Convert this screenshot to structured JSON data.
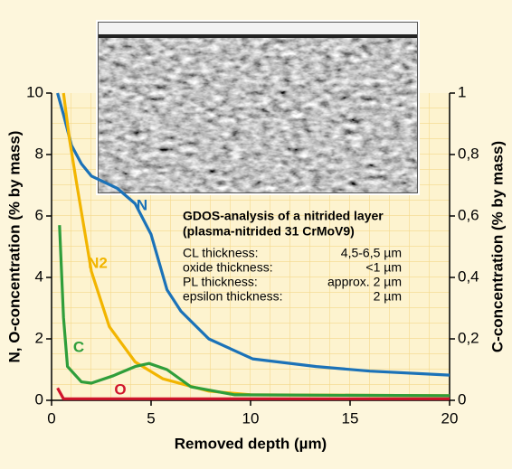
{
  "chart_data": {
    "type": "line",
    "x_label": "Removed depth (µm)",
    "y_label": "N, O-concentration (% by mass)",
    "y2_label": "C-concentration (% by mass)",
    "xlim": [
      0,
      20
    ],
    "xticks": [
      0,
      5,
      10,
      15,
      20
    ],
    "ylim": [
      0,
      10
    ],
    "yticks": [
      0,
      2,
      4,
      6,
      8,
      10
    ],
    "y2lim": [
      0,
      1
    ],
    "y2ticks": [
      0,
      {
        "value": 0.2,
        "label": "0,2"
      },
      {
        "value": 0.4,
        "label": "0,4"
      },
      {
        "value": 0.6,
        "label": "0,6"
      },
      {
        "value": 0.8,
        "label": "0,8"
      },
      1
    ],
    "series": [
      {
        "name": "N",
        "color": "#1b72b8",
        "x": [
          0.3,
          0.6,
          1,
          1.5,
          2,
          3.3,
          4.2,
          5,
          5.8,
          6.5,
          7.9,
          10.1,
          13.3,
          16,
          20
        ],
        "values": [
          10,
          9.3,
          8.3,
          7.7,
          7.3,
          6.9,
          6.4,
          5.4,
          3.6,
          2.9,
          2.0,
          1.35,
          1.1,
          0.95,
          0.82
        ]
      },
      {
        "name": "N2",
        "color": "#f2b500",
        "x": [
          0.6,
          0.9,
          1.3,
          2,
          2.9,
          4.2,
          5.6,
          7.9,
          10,
          20
        ],
        "values": [
          10,
          8.5,
          6.9,
          4.2,
          2.4,
          1.25,
          0.7,
          0.3,
          0.18,
          0.15
        ]
      },
      {
        "name": "C",
        "color": "#2f9e3b",
        "axis": "y2",
        "x": [
          0.4,
          0.6,
          0.8,
          1.5,
          2,
          3.1,
          4.2,
          4.9,
          5.8,
          7,
          9.2,
          20
        ],
        "values": [
          0.57,
          0.27,
          0.11,
          0.06,
          0.056,
          0.08,
          0.11,
          0.12,
          0.1,
          0.044,
          0.018,
          0.015
        ]
      },
      {
        "name": "O",
        "color": "#d0142c",
        "x": [
          0.3,
          0.6,
          1,
          20
        ],
        "values": [
          0.4,
          0.05,
          0.05,
          0.05
        ]
      }
    ],
    "annotation": {
      "title": "GDOS-analysis of a nitrided layer",
      "subtitle": "(plasma-nitrided 31 CrMoV9)",
      "rows": [
        [
          "CL thickness:",
          "4,5-6,5 µm"
        ],
        [
          "oxide thickness:",
          "<1 µm"
        ],
        [
          "PL thickness:",
          "approx. 2 µm"
        ],
        [
          "epsilon thickness:",
          "2 µm"
        ]
      ]
    }
  }
}
